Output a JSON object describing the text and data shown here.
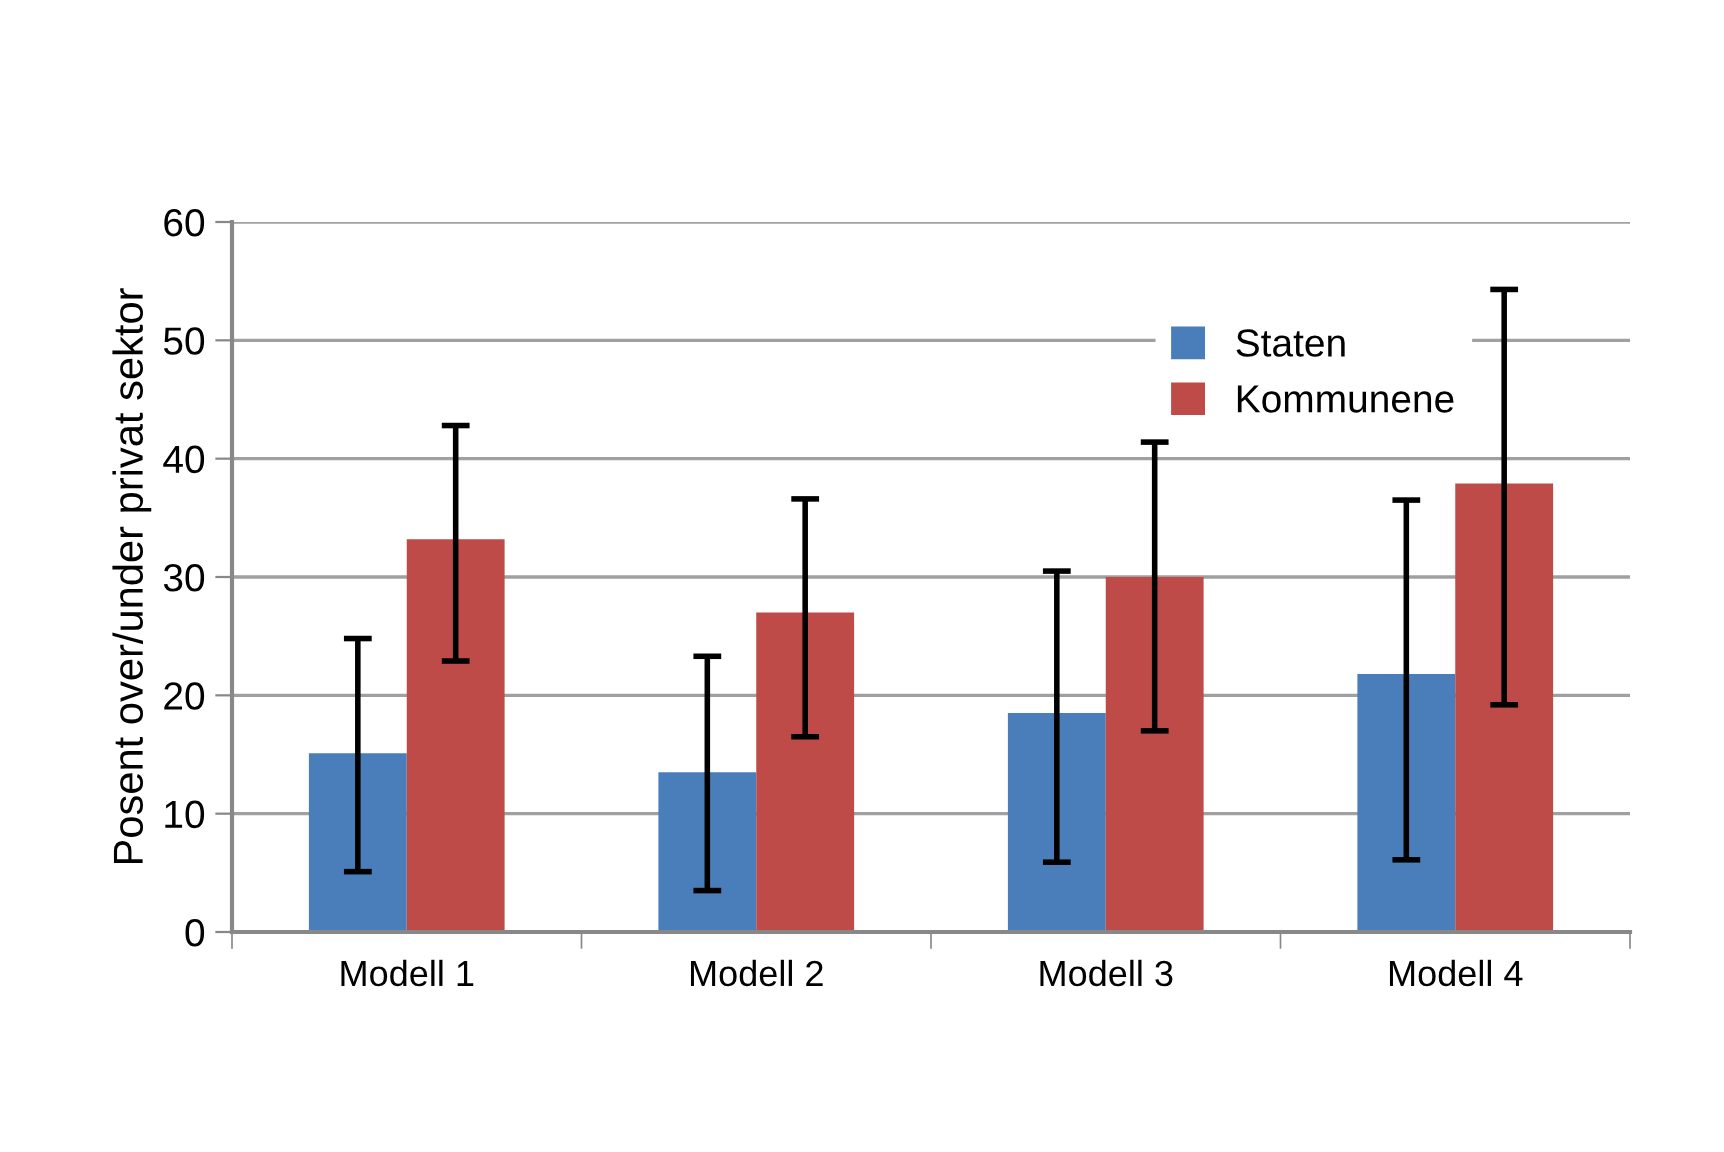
{
  "chart_data": {
    "type": "bar",
    "ylabel": "Posent over/under privat sektor",
    "categories": [
      "Modell 1",
      "Modell 2",
      "Modell 3",
      "Modell 4"
    ],
    "series": [
      {
        "name": "Staten",
        "color": "#4a7ebb",
        "values": [
          15.1,
          13.5,
          18.5,
          21.8
        ],
        "errors": [
          [
            5.1,
            24.8
          ],
          [
            3.5,
            23.3
          ],
          [
            5.9,
            30.5
          ],
          [
            6.1,
            36.5
          ]
        ]
      },
      {
        "name": "Kommunene",
        "color": "#be4b48",
        "values": [
          33.2,
          27.0,
          30.0,
          37.9
        ],
        "errors": [
          [
            22.9,
            42.8
          ],
          [
            16.5,
            36.6
          ],
          [
            17.0,
            41.4
          ],
          [
            19.2,
            54.3
          ]
        ]
      }
    ],
    "ylim": [
      0,
      60
    ],
    "yticks": [
      0,
      10,
      20,
      30,
      40,
      50,
      60
    ],
    "grid": "y",
    "legend": "top right"
  }
}
